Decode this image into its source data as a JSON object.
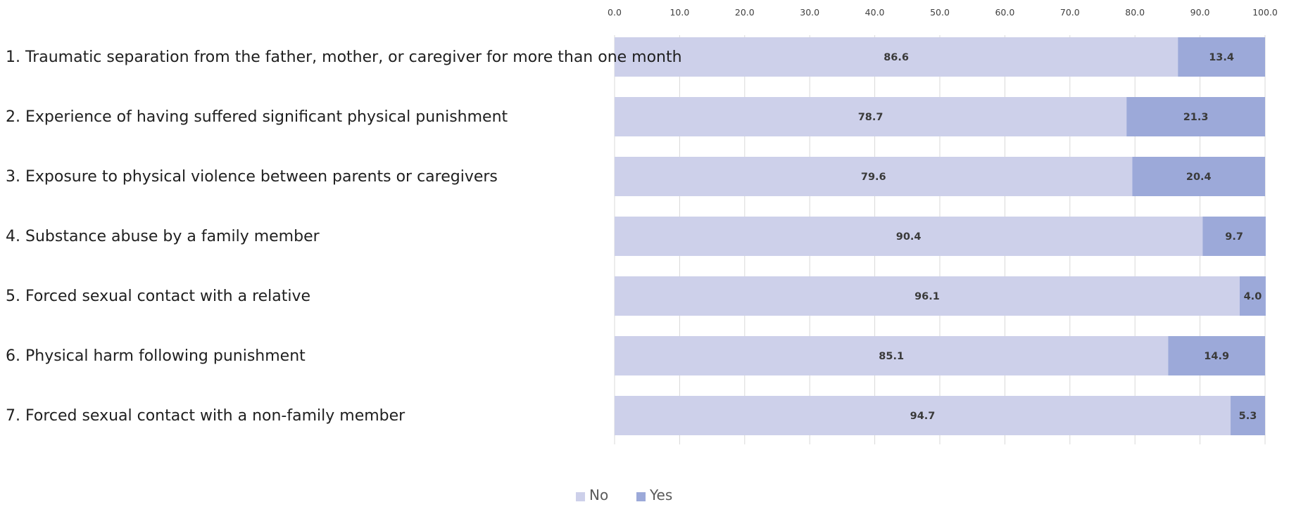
{
  "chart_data": {
    "type": "bar",
    "orientation": "horizontal",
    "stacked": true,
    "title": "",
    "xlabel": "",
    "ylabel": "",
    "xlim": [
      0,
      100
    ],
    "x_ticks": [
      0,
      10,
      20,
      30,
      40,
      50,
      60,
      70,
      80,
      90,
      100
    ],
    "x_tick_labels": [
      "0.0",
      "10.0",
      "20.0",
      "30.0",
      "40.0",
      "50.0",
      "60.0",
      "70.0",
      "80.0",
      "90.0",
      "100.0"
    ],
    "x_axis_position": "top",
    "grid": "vertical",
    "legend_position": "bottom-center",
    "categories": [
      "1.  Traumatic separation from the father, mother, or caregiver for more than one month",
      "2.  Experience of having suffered significant physical punishment",
      "3.  Exposure to physical violence between parents or caregivers",
      "4.  Substance abuse by a family member",
      "5.  Forced sexual contact with a relative",
      "6.  Physical harm following punishment",
      "7.  Forced sexual contact with a non-family member"
    ],
    "series": [
      {
        "name": "No",
        "color": "#cdd0ea",
        "values": [
          86.6,
          78.7,
          79.6,
          90.4,
          96.1,
          85.1,
          94.7
        ],
        "value_labels": [
          "86.6",
          "78.7",
          "79.6",
          "90.4",
          "96.1",
          "85.1",
          "94.7"
        ]
      },
      {
        "name": "Yes",
        "color": "#9ca9d9",
        "values": [
          13.4,
          21.3,
          20.4,
          9.7,
          4.0,
          14.9,
          5.3
        ],
        "value_labels": [
          "13.4",
          "21.3",
          "20.4",
          "9.7",
          "4.0",
          "14.9",
          "5.3"
        ]
      }
    ],
    "colors": {
      "gridline": "#d9d9d9",
      "tick_text": "#404040",
      "data_label_text": "#3a3a3a",
      "category_text": "#1f1f1f"
    }
  }
}
